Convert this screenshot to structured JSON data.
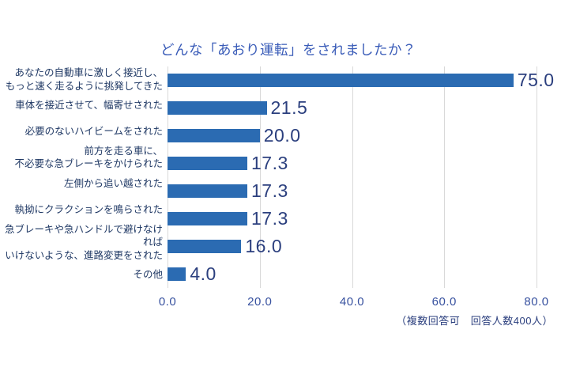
{
  "chart_data": {
    "type": "bar",
    "orientation": "horizontal",
    "title": "どんな「あおり運転」をされましたか？",
    "categories": [
      [
        "あなたの自動車に激しく接近し、",
        "もっと速く走るように挑発してきた"
      ],
      [
        "車体を接近させて、幅寄せされた"
      ],
      [
        "必要のないハイビームをされた"
      ],
      [
        "前方を走る車に、",
        "不必要な急ブレーキをかけられた"
      ],
      [
        "左側から追い越された"
      ],
      [
        "執拗にクラクションを鳴らされた"
      ],
      [
        "急ブレーキや急ハンドルで避けなければ",
        "いけないような、進路変更をされた"
      ],
      [
        "その他"
      ]
    ],
    "values": [
      75.0,
      21.5,
      20.0,
      17.3,
      17.3,
      17.3,
      16.0,
      4.0
    ],
    "value_labels": [
      "75.0",
      "21.5",
      "20.0",
      "17.3",
      "17.3",
      "17.3",
      "16.0",
      "4.0"
    ],
    "x_ticks": [
      "0.0",
      "20.0",
      "40.0",
      "60.0",
      "80.0"
    ],
    "xlim": [
      0,
      80
    ],
    "grid": "vertical-gridlines-at-ticks",
    "legend": "none",
    "footnote": "（複数回答可　回答人数400人）",
    "colors": {
      "bar": "#2B6BB2",
      "value_label": "#2B3F7E",
      "title": "#3A5CB8",
      "tick_label": "#37519F",
      "category_label": "#1F3864",
      "gridline": "#D9D9D9",
      "background": "#FFFFFF"
    }
  }
}
